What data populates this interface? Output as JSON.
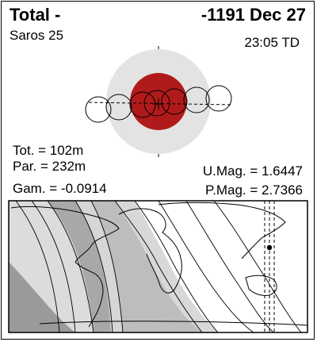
{
  "header": {
    "eclipse_type": "Total  -",
    "date": "-1191 Dec 27",
    "saros": "Saros  25",
    "time": "23:05 TD"
  },
  "stats": {
    "total_duration": "Tot. = 102m",
    "partial_duration": "Par. = 232m",
    "gamma": "Gam. = -0.0914",
    "umbral_magnitude": "U.Mag. = 1.6447",
    "penumbral_magnitude": "P.Mag. = 2.7366"
  },
  "colors": {
    "penumbra": "#e3e3e3",
    "umbra_moon": "#b11a1a",
    "map_night": "#9a9a9a",
    "map_band": "#d6d6d6",
    "map_day": "#ffffff"
  }
}
